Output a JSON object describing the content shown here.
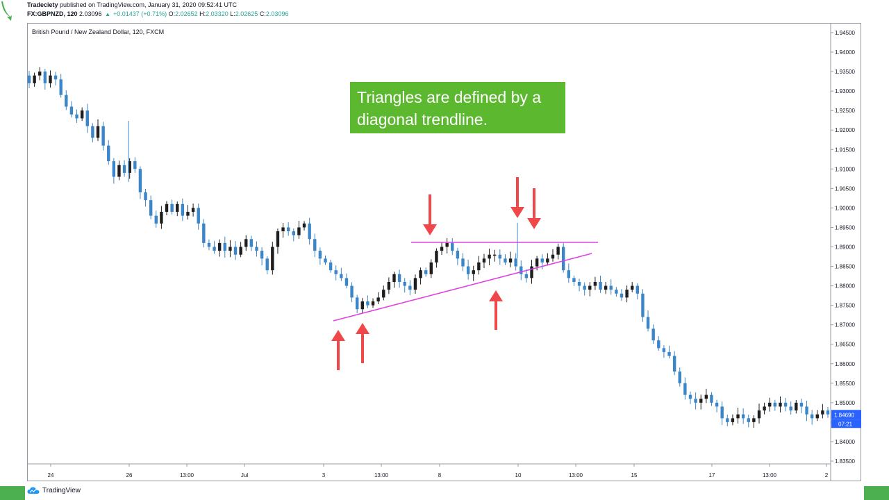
{
  "header": {
    "publisher": "Tradeciety",
    "published_text": "published on TradingView.com, January 31, 2020 09:52:41 UTC",
    "symbol_line": "FX:GBPNZD, 120",
    "last": "2.03096",
    "change": "+0.01437 (+0.71%)",
    "open_label": "O:",
    "open": "2.02652",
    "high_label": "H:",
    "high": "2.03320",
    "low_label": "L:",
    "low": "2.02625",
    "close_label": "C:",
    "close": "2.03096"
  },
  "chart_title": "British Pound / New Zealand Dollar, 120, FXCM",
  "callout": {
    "text": "Triangles are defined by a diagonal trendline."
  },
  "footer": {
    "brand": "TradingView"
  },
  "colors": {
    "up": "#1e1e1e",
    "down": "#3a86c8",
    "trendline": "#e040e0",
    "arrow": "#f0484a",
    "callout_bg": "#5cb82e",
    "price_badge": "#2962ff"
  },
  "chart_data": {
    "type": "candlestick",
    "y_ticks": [
      "1.94500",
      "1.94000",
      "1.93500",
      "1.93000",
      "1.92500",
      "1.92000",
      "1.91500",
      "1.91000",
      "1.90500",
      "1.90000",
      "1.89500",
      "1.89000",
      "1.88500",
      "1.88000",
      "1.87500",
      "1.87000",
      "1.86500",
      "1.86000",
      "1.85500",
      "1.85000",
      "1.84500",
      "1.84000",
      "1.83500"
    ],
    "x_ticks": [
      "24",
      "26",
      "13:00",
      "Jul",
      "3",
      "13:00",
      "8",
      "10",
      "13:00",
      "15",
      "17",
      "13:00",
      "2"
    ],
    "ylim": [
      1.833,
      1.9475
    ],
    "current_price": "1.84690",
    "countdown": "07:21",
    "close_path": [
      1.932,
      1.934,
      1.935,
      1.932,
      1.934,
      1.933,
      1.929,
      1.926,
      1.924,
      1.923,
      1.925,
      1.921,
      1.918,
      1.921,
      1.916,
      1.912,
      1.908,
      1.911,
      1.909,
      1.912,
      1.91,
      1.904,
      1.902,
      1.898,
      1.896,
      1.899,
      1.901,
      1.899,
      1.901,
      1.898,
      1.899,
      1.9,
      1.896,
      1.891,
      1.89,
      1.889,
      1.891,
      1.889,
      1.89,
      1.888,
      1.89,
      1.892,
      1.89,
      1.889,
      1.887,
      1.884,
      1.89,
      1.894,
      1.895,
      1.894,
      1.893,
      1.895,
      1.896,
      1.892,
      1.889,
      1.887,
      1.886,
      1.884,
      1.883,
      1.882,
      1.88,
      1.877,
      1.874,
      1.876,
      1.875,
      1.876,
      1.877,
      1.879,
      1.881,
      1.883,
      1.881,
      1.88,
      1.879,
      1.882,
      1.884,
      1.883,
      1.886,
      1.889,
      1.89,
      1.891,
      1.889,
      1.887,
      1.885,
      1.883,
      1.884,
      1.886,
      1.887,
      1.888,
      1.888,
      1.887,
      1.886,
      1.887,
      1.885,
      1.883,
      1.882,
      1.885,
      1.887,
      1.886,
      1.887,
      1.888,
      1.89,
      1.884,
      1.882,
      1.881,
      1.88,
      1.879,
      1.88,
      1.881,
      1.879,
      1.88,
      1.879,
      1.878,
      1.877,
      1.879,
      1.88,
      1.878,
      1.872,
      1.869,
      1.866,
      1.864,
      1.863,
      1.862,
      1.858,
      1.855,
      1.852,
      1.851,
      1.85,
      1.851,
      1.852,
      1.85,
      1.849,
      1.846,
      1.845,
      1.846,
      1.847,
      1.846,
      1.845,
      1.846,
      1.848,
      1.849,
      1.85,
      1.849,
      1.85,
      1.849,
      1.848,
      1.85,
      1.849,
      1.847,
      1.846,
      1.847,
      1.848,
      1.847
    ],
    "resistance": {
      "from": [
        "7",
        1.8911
      ],
      "to": [
        "13:00",
        1.8911
      ]
    },
    "rising_trendline": {
      "from": [
        "3",
        1.8707
      ],
      "to": [
        "13:00",
        1.8885
      ]
    }
  }
}
